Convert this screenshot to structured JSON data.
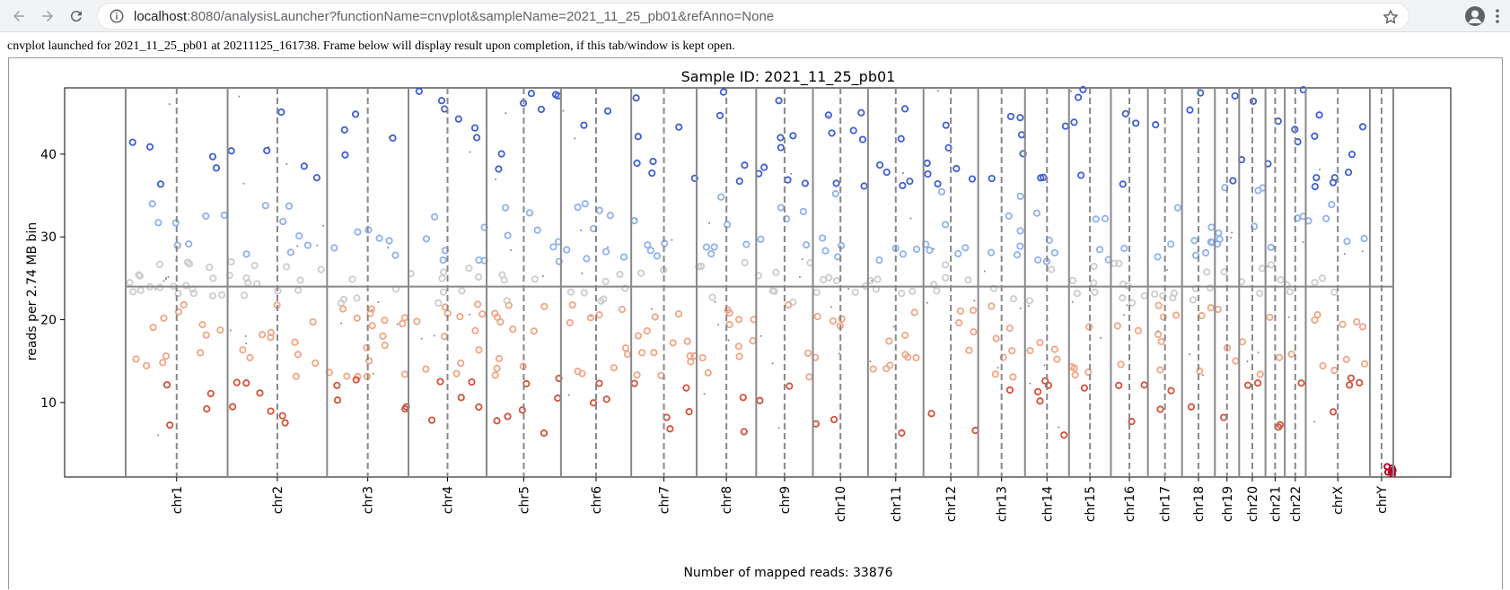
{
  "browser": {
    "url_host": "localhost",
    "url_rest": ":8080/analysisLauncher?functionName=cnvplot&sampleName=2021_11_25_pb01&refAnno=None",
    "icons": {
      "back": "arrow-left-icon",
      "forward": "arrow-right-icon",
      "reload": "reload-icon",
      "info": "info-icon",
      "bookmark": "star-icon",
      "profile": "account-icon",
      "menu": "kebab-menu-icon"
    }
  },
  "status_message": "cnvplot launched for 2021_11_25_pb01 at 20211125_161738. Frame below will display result upon completion, if this tab/window is kept open.",
  "chart_data": {
    "type": "scatter",
    "title": "Sample ID: 2021_11_25_pb01",
    "xlabel": "Number of mapped reads: 33876",
    "ylabel": "reads per 2.74 MB bin",
    "ylim": [
      1,
      48
    ],
    "yticks": [
      10,
      20,
      30,
      40
    ],
    "baseline_y": 24,
    "grid": false,
    "colors": {
      "high": "#3f5fd6",
      "mid_high": "#8fb0f0",
      "neutral": "#cccccc",
      "mid_low": "#f2a585",
      "low": "#d6503a",
      "very_low": "#b40426"
    },
    "chromosomes": [
      {
        "name": "chr1",
        "width": 248
      },
      {
        "name": "chr2",
        "width": 242
      },
      {
        "name": "chr3",
        "width": 198
      },
      {
        "name": "chr4",
        "width": 190
      },
      {
        "name": "chr5",
        "width": 181
      },
      {
        "name": "chr6",
        "width": 171
      },
      {
        "name": "chr7",
        "width": 159
      },
      {
        "name": "chr8",
        "width": 145
      },
      {
        "name": "chr9",
        "width": 138
      },
      {
        "name": "chr10",
        "width": 134
      },
      {
        "name": "chr11",
        "width": 135
      },
      {
        "name": "chr12",
        "width": 133
      },
      {
        "name": "chr13",
        "width": 114
      },
      {
        "name": "chr14",
        "width": 107
      },
      {
        "name": "chr15",
        "width": 102
      },
      {
        "name": "chr16",
        "width": 90
      },
      {
        "name": "chr17",
        "width": 83
      },
      {
        "name": "chr18",
        "width": 80
      },
      {
        "name": "chr19",
        "width": 59
      },
      {
        "name": "chr20",
        "width": 64
      },
      {
        "name": "chr21",
        "width": 47
      },
      {
        "name": "chr22",
        "width": 51
      },
      {
        "name": "chrX",
        "width": 156
      },
      {
        "name": "chrY",
        "width": 57
      }
    ],
    "x_start_offset": 150
  }
}
